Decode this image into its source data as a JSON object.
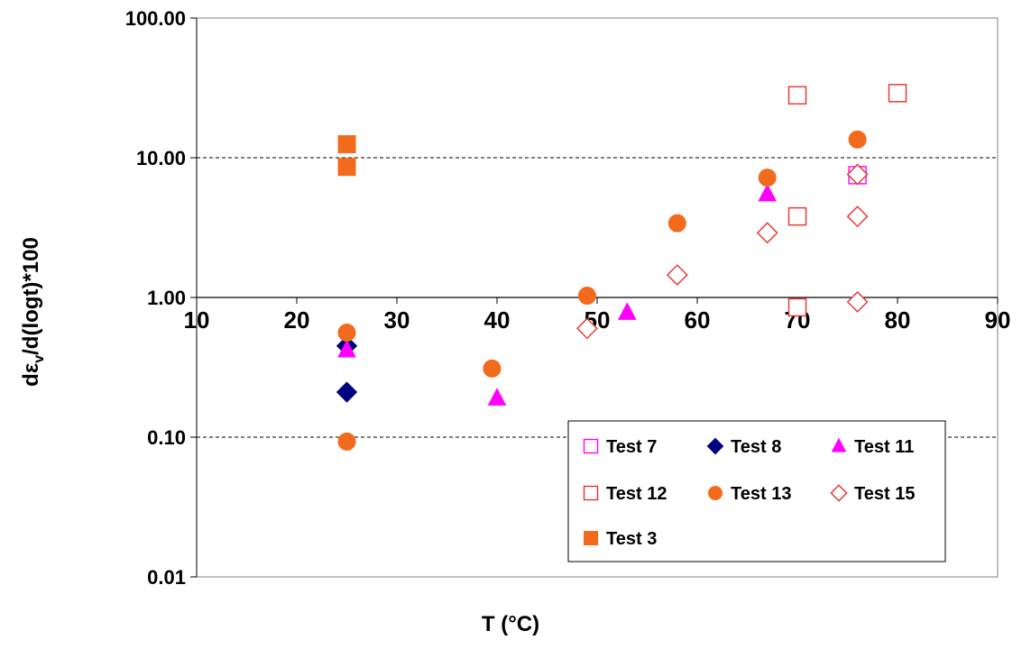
{
  "chart_data": {
    "type": "scatter",
    "title": "",
    "xlabel": "T (°C)",
    "ylabel_parts": {
      "prefix": "d",
      "greek": "ε",
      "subscript": "v",
      "suffix": "/d(logt)*100"
    },
    "xlim": [
      10,
      90
    ],
    "ylim": [
      0.01,
      100
    ],
    "y_scale": "log",
    "x_ticks": [
      "10",
      "20",
      "30",
      "40",
      "50",
      "60",
      "70",
      "80",
      "90"
    ],
    "y_ticks": [
      "0.01",
      "0.10",
      "1.00",
      "10.00",
      "100.00"
    ],
    "grid": "horizontal dashed",
    "legend_position": "bottom-right inside plot",
    "series": [
      {
        "name": "Test 7",
        "marker": "square-open",
        "color": "#ff00ff",
        "points": [
          [
            76,
            7.5
          ]
        ]
      },
      {
        "name": "Test 8",
        "marker": "diamond-filled",
        "color": "#000080",
        "points": [
          [
            25,
            0.45
          ],
          [
            25,
            0.21
          ]
        ]
      },
      {
        "name": "Test 11",
        "marker": "triangle-filled",
        "color": "#ff00ff",
        "points": [
          [
            25,
            0.42
          ],
          [
            40,
            0.19
          ],
          [
            53,
            0.78
          ],
          [
            67,
            5.5
          ]
        ]
      },
      {
        "name": "Test 12",
        "marker": "square-open",
        "color": "#e8302a",
        "points": [
          [
            70,
            28
          ],
          [
            80,
            29
          ],
          [
            70,
            3.8
          ],
          [
            70,
            0.85
          ]
        ]
      },
      {
        "name": "Test 13",
        "marker": "circle-filled",
        "color": "#f26b1d",
        "points": [
          [
            25,
            0.56
          ],
          [
            25,
            0.093
          ],
          [
            39.5,
            0.31
          ],
          [
            49,
            1.03
          ],
          [
            58,
            3.4
          ],
          [
            67,
            7.2
          ],
          [
            76,
            13.5
          ]
        ]
      },
      {
        "name": "Test 15",
        "marker": "diamond-open",
        "color": "#e8302a",
        "points": [
          [
            49,
            0.6
          ],
          [
            58,
            1.45
          ],
          [
            67,
            2.9
          ],
          [
            76,
            7.6
          ],
          [
            76,
            3.8
          ],
          [
            76,
            0.93
          ]
        ]
      },
      {
        "name": "Test 3",
        "marker": "square-filled",
        "color": "#f26b1d",
        "points": [
          [
            25,
            12.5
          ],
          [
            25,
            8.6
          ]
        ]
      }
    ]
  }
}
